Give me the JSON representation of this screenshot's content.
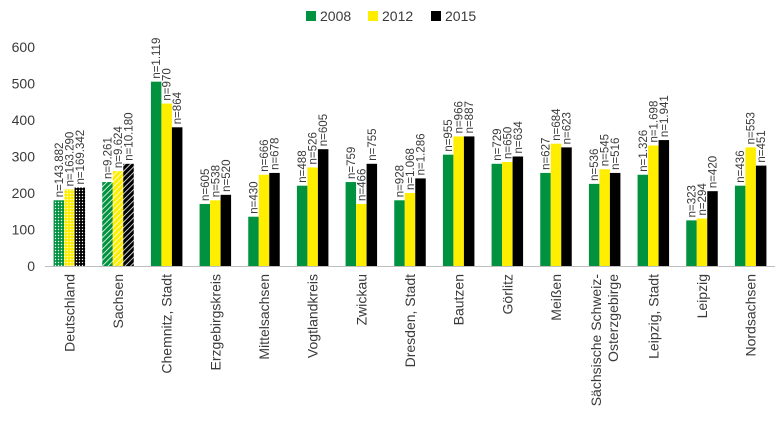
{
  "chart_data": {
    "type": "bar",
    "ylim": [
      0,
      600
    ],
    "yticks": [
      0,
      100,
      200,
      300,
      400,
      500,
      600
    ],
    "grid": false,
    "legend": "top-center",
    "categories": [
      "Deutschland",
      "Sachsen",
      "Chemnitz, Stadt",
      "Erzgebirgskreis",
      "Mittelsachsen",
      "Vogtlandkreis",
      "Zwickau",
      "Dresden, Stadt",
      "Bautzen",
      "Görlitz",
      "Meißen",
      "Sächsische Schweiz-Osterzgebirge",
      "Leipzig, Stadt",
      "Leipzig",
      "Nordsachsen"
    ],
    "category_lines": [
      [
        "Deutschland"
      ],
      [
        "Sachsen"
      ],
      [
        "Chemnitz, Stadt"
      ],
      [
        "Erzgebirgskreis"
      ],
      [
        "Mittelsachsen"
      ],
      [
        "Vogtlandkreis"
      ],
      [
        "Zwickau"
      ],
      [
        "Dresden, Stadt"
      ],
      [
        "Bautzen"
      ],
      [
        "Görlitz"
      ],
      [
        "Meißen"
      ],
      [
        "Sächsische Schweiz-",
        "Osterzgebirge"
      ],
      [
        "Leipzig, Stadt"
      ],
      [
        "Leipzig"
      ],
      [
        "Nordsachsen"
      ]
    ],
    "series": [
      {
        "name": "2008",
        "color": "#00923f",
        "values": [
          180,
          230,
          505,
          170,
          135,
          220,
          230,
          180,
          305,
          280,
          255,
          225,
          250,
          125,
          220
        ],
        "labels": [
          "n=143.882",
          "n=9.261",
          "n=1.119",
          "n=605",
          "n=430",
          "n=488",
          "n=759",
          "n=928",
          "n=955",
          "n=729",
          "n=627",
          "n=536",
          "n=1.326",
          "n=323",
          "n=436"
        ]
      },
      {
        "name": "2012",
        "color": "#ffee00",
        "values": [
          210,
          260,
          445,
          180,
          250,
          270,
          170,
          200,
          355,
          285,
          335,
          265,
          330,
          130,
          325
        ],
        "labels": [
          "n=163.290",
          "n=9.624",
          "n=970",
          "n=538",
          "n=666",
          "n=526",
          "n=466",
          "n=1.068",
          "n=966",
          "n=650",
          "n=684",
          "n=545",
          "n=1.698",
          "n=294",
          "n=553"
        ]
      },
      {
        "name": "2015",
        "color": "#000000",
        "values": [
          215,
          280,
          380,
          195,
          255,
          320,
          280,
          240,
          355,
          300,
          325,
          255,
          345,
          205,
          275
        ],
        "labels": [
          "n=169.342",
          "n=10.180",
          "n=864",
          "n=520",
          "n=678",
          "n=605",
          "n=755",
          "n=1.286",
          "n=887",
          "n=634",
          "n=623",
          "n=516",
          "n=1.941",
          "n=420",
          "n=451"
        ]
      }
    ],
    "patterned_categories": [
      0,
      1
    ]
  }
}
